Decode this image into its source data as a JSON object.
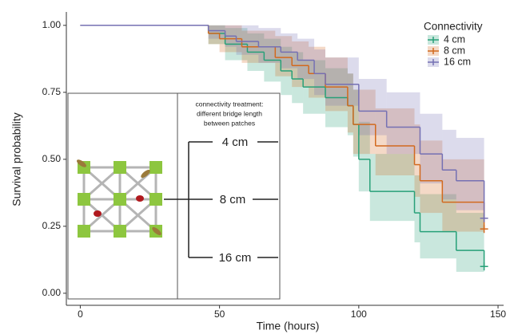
{
  "chart_data": {
    "type": "step",
    "xlabel": "Time (hours)",
    "ylabel": "Survival probability",
    "xlim": [
      -5,
      152
    ],
    "ylim": [
      -0.045,
      1.05
    ],
    "xticks": [
      0,
      50,
      100,
      150
    ],
    "yticks": [
      {
        "value": 0,
        "label": "0.00"
      },
      {
        "value": 0.25,
        "label": "0.25"
      },
      {
        "value": 0.5,
        "label": "0.50"
      },
      {
        "value": 0.75,
        "label": "0.75"
      },
      {
        "value": 1,
        "label": "1.00"
      }
    ],
    "legend_title": "Connectivity",
    "legend": "top-right",
    "series": [
      {
        "name": "4 cm",
        "color": "#27a078",
        "x": [
          0,
          46,
          52,
          60,
          66,
          72,
          76,
          80,
          88,
          96,
          98,
          100,
          104,
          120,
          122,
          135,
          145
        ],
        "values": [
          1,
          0.97,
          0.93,
          0.9,
          0.87,
          0.83,
          0.8,
          0.77,
          0.73,
          0.7,
          0.63,
          0.5,
          0.38,
          0.3,
          0.23,
          0.16,
          0.1
        ],
        "lower": [
          1,
          0.93,
          0.87,
          0.83,
          0.79,
          0.74,
          0.71,
          0.67,
          0.62,
          0.59,
          0.51,
          0.38,
          0.27,
          0.19,
          0.13,
          0.08,
          0.03
        ],
        "upper": [
          1,
          1,
          0.99,
          0.97,
          0.95,
          0.92,
          0.9,
          0.87,
          0.84,
          0.82,
          0.76,
          0.64,
          0.52,
          0.44,
          0.37,
          0.3,
          0.22
        ]
      },
      {
        "name": "8 cm",
        "color": "#d2691e",
        "x": [
          0,
          46,
          50,
          58,
          70,
          76,
          82,
          88,
          96,
          98,
          106,
          120,
          122,
          130,
          145
        ],
        "values": [
          1,
          0.97,
          0.95,
          0.92,
          0.88,
          0.85,
          0.82,
          0.77,
          0.7,
          0.63,
          0.55,
          0.48,
          0.42,
          0.34,
          0.24
        ],
        "lower": [
          1,
          0.93,
          0.9,
          0.86,
          0.81,
          0.77,
          0.73,
          0.68,
          0.6,
          0.52,
          0.44,
          0.36,
          0.3,
          0.23,
          0.14
        ],
        "upper": [
          1,
          1,
          1,
          0.98,
          0.96,
          0.94,
          0.92,
          0.88,
          0.82,
          0.76,
          0.69,
          0.63,
          0.57,
          0.5,
          0.4
        ]
      },
      {
        "name": "16 cm",
        "color": "#7570b3",
        "x": [
          0,
          46,
          52,
          56,
          64,
          72,
          78,
          84,
          88,
          100,
          110,
          122,
          130,
          135,
          145
        ],
        "values": [
          1,
          0.98,
          0.96,
          0.94,
          0.92,
          0.9,
          0.87,
          0.82,
          0.78,
          0.68,
          0.62,
          0.52,
          0.46,
          0.42,
          0.28
        ],
        "lower": [
          1,
          0.95,
          0.92,
          0.89,
          0.86,
          0.84,
          0.8,
          0.74,
          0.7,
          0.59,
          0.52,
          0.41,
          0.35,
          0.31,
          0.18
        ],
        "upper": [
          1,
          1,
          1,
          1,
          0.99,
          0.97,
          0.95,
          0.91,
          0.88,
          0.8,
          0.75,
          0.67,
          0.61,
          0.58,
          0.45
        ]
      }
    ]
  },
  "inset": {
    "description": [
      "connectivity treatment:",
      "different bridge length",
      "between patches"
    ],
    "lengths": [
      "4 cm",
      "8 cm",
      "16 cm"
    ]
  }
}
